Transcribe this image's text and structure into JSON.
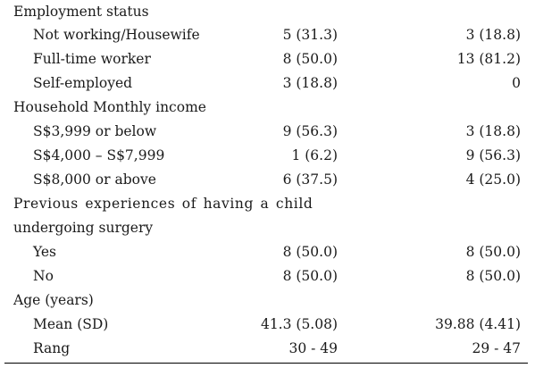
{
  "rows": [
    {
      "label": "Employment status",
      "c1": "",
      "c2": ""
    },
    {
      "label": "Not working/Housewife",
      "c1": "5 (31.3)",
      "c2": "3 (18.8)"
    },
    {
      "label": "Full-time worker",
      "c1": "8 (50.0)",
      "c2": "13 (81.2)"
    },
    {
      "label": "Self-employed",
      "c1": "3 (18.8)",
      "c2": "0"
    },
    {
      "label": "Household Monthly income",
      "c1": "",
      "c2": ""
    },
    {
      "label": "S$3,999 or below",
      "c1": "9 (56.3)",
      "c2": "3 (18.8)"
    },
    {
      "label": "S$4,000 – S$7,999",
      "c1": "1 (6.2)",
      "c2": "9 (56.3)"
    },
    {
      "label": "S$8,000 or above",
      "c1": "6 (37.5)",
      "c2": "4 (25.0)"
    },
    {
      "label": "Previous experiences of having a child",
      "c1": "",
      "c2": ""
    },
    {
      "label": "undergoing surgery",
      "c1": "",
      "c2": ""
    },
    {
      "label": "Yes",
      "c1": "8 (50.0)",
      "c2": "8 (50.0)"
    },
    {
      "label": "No",
      "c1": "8 (50.0)",
      "c2": "8 (50.0)"
    },
    {
      "label": "Age (years)",
      "c1": "",
      "c2": ""
    },
    {
      "label": "Mean (SD)",
      "c1": "41.3 (5.08)",
      "c2": "39.88 (4.41)"
    },
    {
      "label": "Rang",
      "c1": "30 - 49",
      "c2": "29 - 47"
    }
  ]
}
